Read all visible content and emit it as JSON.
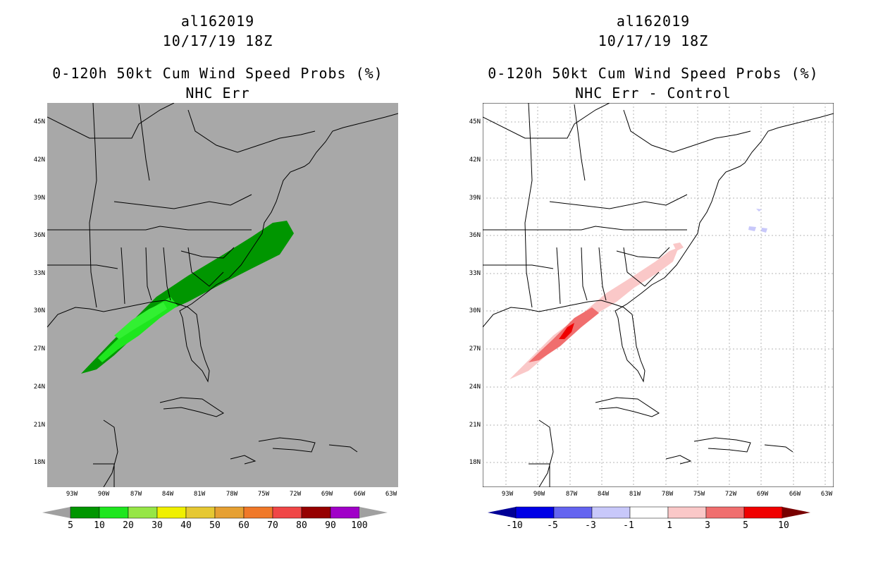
{
  "left": {
    "storm_id": "al162019",
    "datetime": "10/17/19 18Z",
    "product": "0-120h 50kt Cum Wind Speed Probs (%)",
    "subtitle": "NHC Err",
    "lat_labels": [
      "45N",
      "42N",
      "39N",
      "36N",
      "33N",
      "30N",
      "27N",
      "24N",
      "21N",
      "18N"
    ],
    "lon_labels": [
      "93W",
      "90W",
      "87W",
      "84W",
      "81W",
      "78W",
      "75W",
      "72W",
      "69W",
      "66W",
      "63W"
    ],
    "colorbar": {
      "labels": [
        "5",
        "10",
        "20",
        "30",
        "40",
        "50",
        "60",
        "70",
        "80",
        "90",
        "100"
      ],
      "colors": [
        "#009600",
        "#1ee61e",
        "#96e646",
        "#f0f000",
        "#e6c832",
        "#e6a032",
        "#f07828",
        "#f04646",
        "#960000",
        "#a000c8"
      ],
      "ends": [
        "#a0a0a0",
        "#a0a0a0"
      ]
    },
    "background": "#a8a8a8"
  },
  "right": {
    "storm_id": "al162019",
    "datetime": "10/17/19 18Z",
    "product": "0-120h 50kt Cum Wind Speed Probs (%)",
    "subtitle": "NHC Err - Control",
    "lat_labels": [
      "45N",
      "42N",
      "39N",
      "36N",
      "33N",
      "30N",
      "27N",
      "24N",
      "21N",
      "18N"
    ],
    "lon_labels": [
      "93W",
      "90W",
      "87W",
      "84W",
      "81W",
      "78W",
      "75W",
      "72W",
      "69W",
      "66W",
      "63W"
    ],
    "colorbar": {
      "labels": [
        "-10",
        "-5",
        "-3",
        "-1",
        "1",
        "3",
        "5",
        "10"
      ],
      "colors": [
        "#0000e6",
        "#6464f0",
        "#c8c8fa",
        "#ffffff",
        "#fac8c8",
        "#f06e6e",
        "#f00000"
      ],
      "ends": [
        "#000096",
        "#780000"
      ]
    },
    "background": "#ffffff"
  }
}
